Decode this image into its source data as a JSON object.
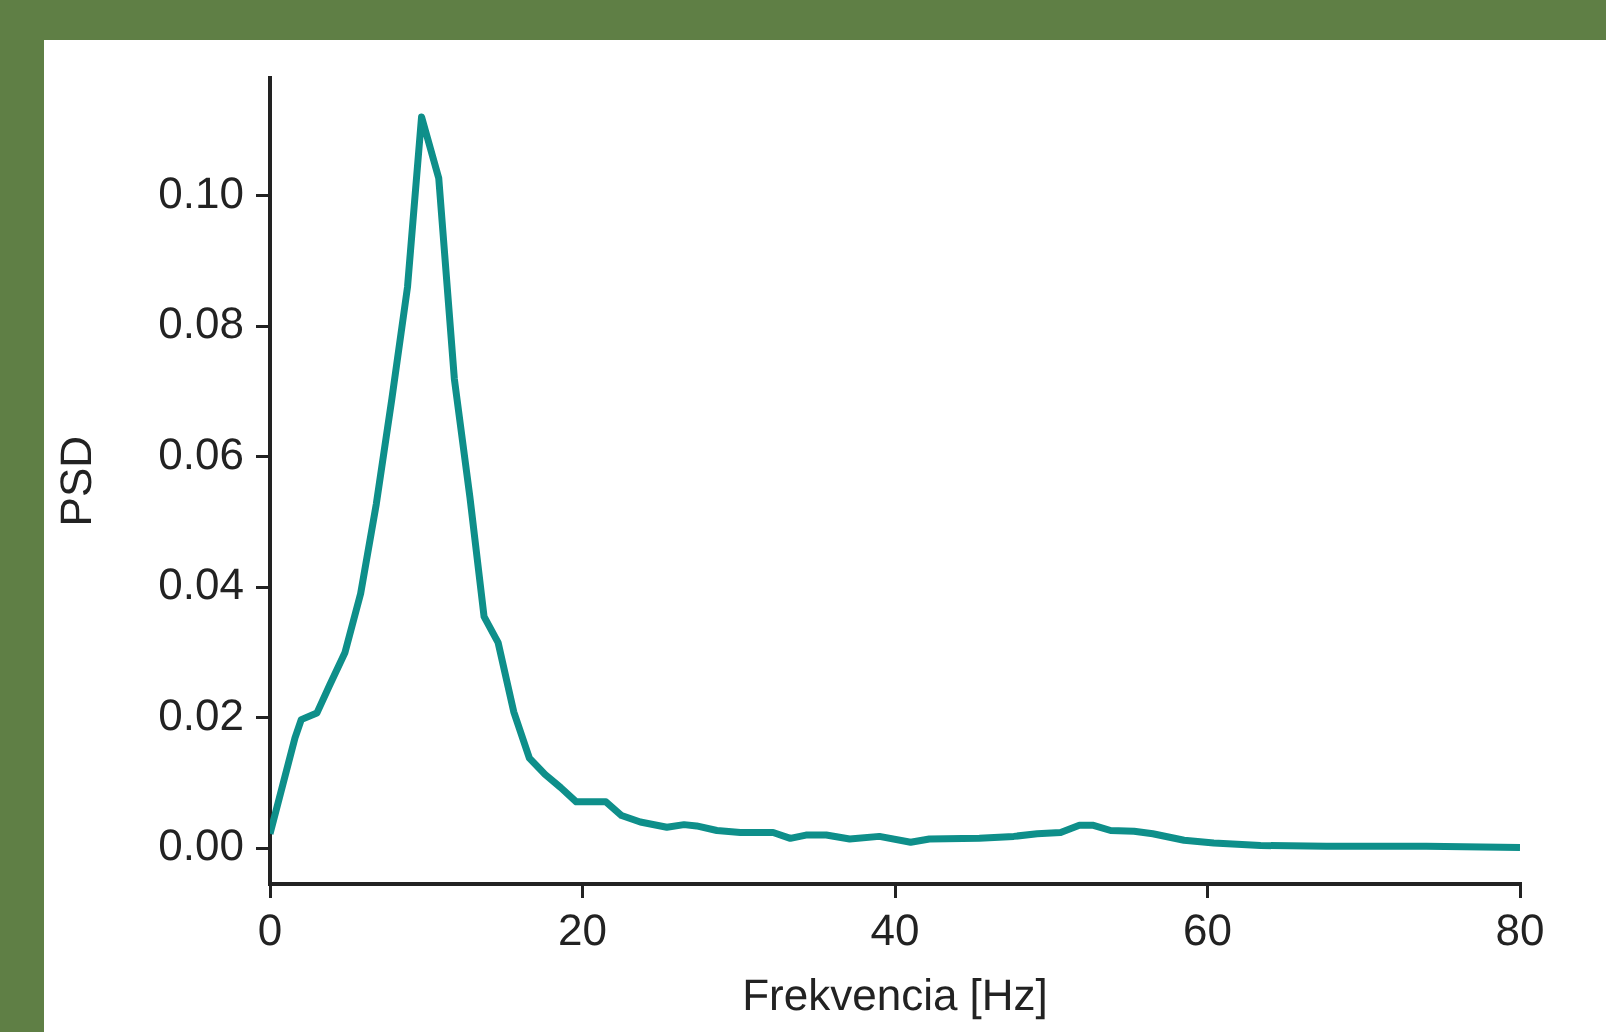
{
  "chart_data": {
    "type": "line",
    "xlabel": "Frekvencia [Hz]",
    "ylabel": "PSD",
    "color": "#0e8f8a",
    "x": [
      0,
      1.6,
      2.0,
      3.0,
      3.8,
      4.8,
      5.8,
      6.8,
      7.8,
      8.8,
      9.7,
      10.8,
      11.8,
      12.8,
      13.7,
      14.6,
      15.6,
      16.6,
      17.6,
      18.6,
      19.6,
      21.5,
      22.5,
      23.7,
      25.4,
      26.5,
      27.3,
      28.6,
      30.1,
      32.2,
      33.3,
      34.3,
      35.6,
      37.1,
      39.0,
      41.0,
      42.2,
      45.4,
      47.6,
      49.1,
      50.6,
      51.8,
      52.7,
      53.8,
      55.3,
      56.5,
      58.5,
      60.4,
      63.4,
      67.6,
      74,
      80
    ],
    "values": [
      0.0022,
      0.0169,
      0.0197,
      0.0207,
      0.0249,
      0.03,
      0.039,
      0.0527,
      0.0689,
      0.086,
      0.1121,
      0.1027,
      0.0719,
      0.0537,
      0.0355,
      0.0315,
      0.0209,
      0.0138,
      0.0113,
      0.0093,
      0.0071,
      0.0071,
      0.005,
      0.004,
      0.0032,
      0.0036,
      0.0034,
      0.0027,
      0.0024,
      0.0024,
      0.0015,
      0.002,
      0.002,
      0.0014,
      0.0018,
      0.0009,
      0.0014,
      0.0015,
      0.0018,
      0.0022,
      0.0024,
      0.0035,
      0.0035,
      0.0027,
      0.0026,
      0.0022,
      0.0012,
      0.0008,
      0.0004,
      0.0003,
      0.0003,
      0.0001
    ],
    "xlim": [
      0,
      80
    ],
    "xticks": [
      0,
      20,
      40,
      60,
      80
    ],
    "ylim": [
      -0.0055,
      0.118
    ],
    "yticks": [
      {
        "value": 0,
        "label": "0.00"
      },
      {
        "value": 0.02,
        "label": "0.02"
      },
      {
        "value": 0.04,
        "label": "0.04"
      },
      {
        "value": 0.06,
        "label": "0.06"
      },
      {
        "value": 0.08,
        "label": "0.08"
      },
      {
        "value": 0.1,
        "label": "0.10"
      }
    ],
    "line_style": "solid",
    "marker": "none"
  }
}
